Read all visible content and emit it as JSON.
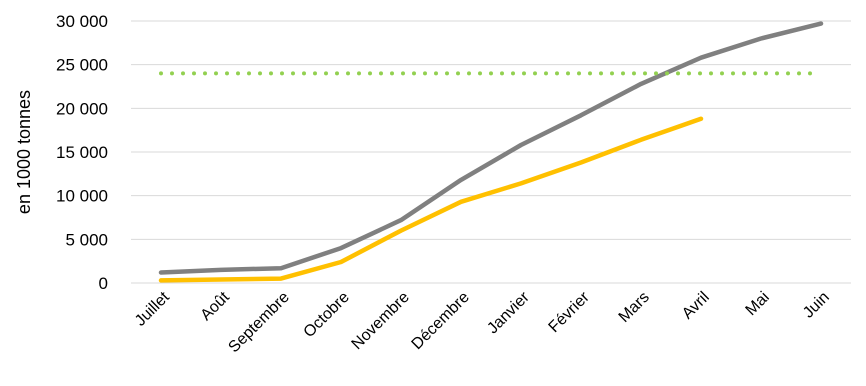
{
  "chart_data": {
    "type": "line",
    "title": "",
    "xlabel": "",
    "ylabel": "en 1000 tonnes",
    "categories": [
      "Juillet",
      "Août",
      "Septembre",
      "Octobre",
      "Novembre",
      "Décembre",
      "Janvier",
      "Février",
      "Mars",
      "Avril",
      "Mai",
      "Juin"
    ],
    "ylim": [
      0,
      30000
    ],
    "yticks": [
      0,
      5000,
      10000,
      15000,
      20000,
      25000,
      30000
    ],
    "ytick_labels": [
      "0",
      "5 000",
      "10 000",
      "15 000",
      "20 000",
      "25 000",
      "30 000"
    ],
    "grid": "horizontal",
    "legend": "none",
    "series": [
      {
        "color": "#808080",
        "style": "solid",
        "values": [
          1200,
          1500,
          1700,
          4000,
          7200,
          11800,
          15800,
          19200,
          22800,
          25800,
          28000,
          29700
        ]
      },
      {
        "color": "#FFC000",
        "style": "solid",
        "values": [
          300,
          400,
          500,
          2400,
          6000,
          9300,
          11400,
          13800,
          16400,
          18800,
          null,
          null
        ]
      },
      {
        "color": "#92D050",
        "style": "dotted",
        "values": [
          24000,
          24000,
          24000,
          24000,
          24000,
          24000,
          24000,
          24000,
          24000,
          24000,
          24000,
          24000
        ]
      }
    ]
  }
}
